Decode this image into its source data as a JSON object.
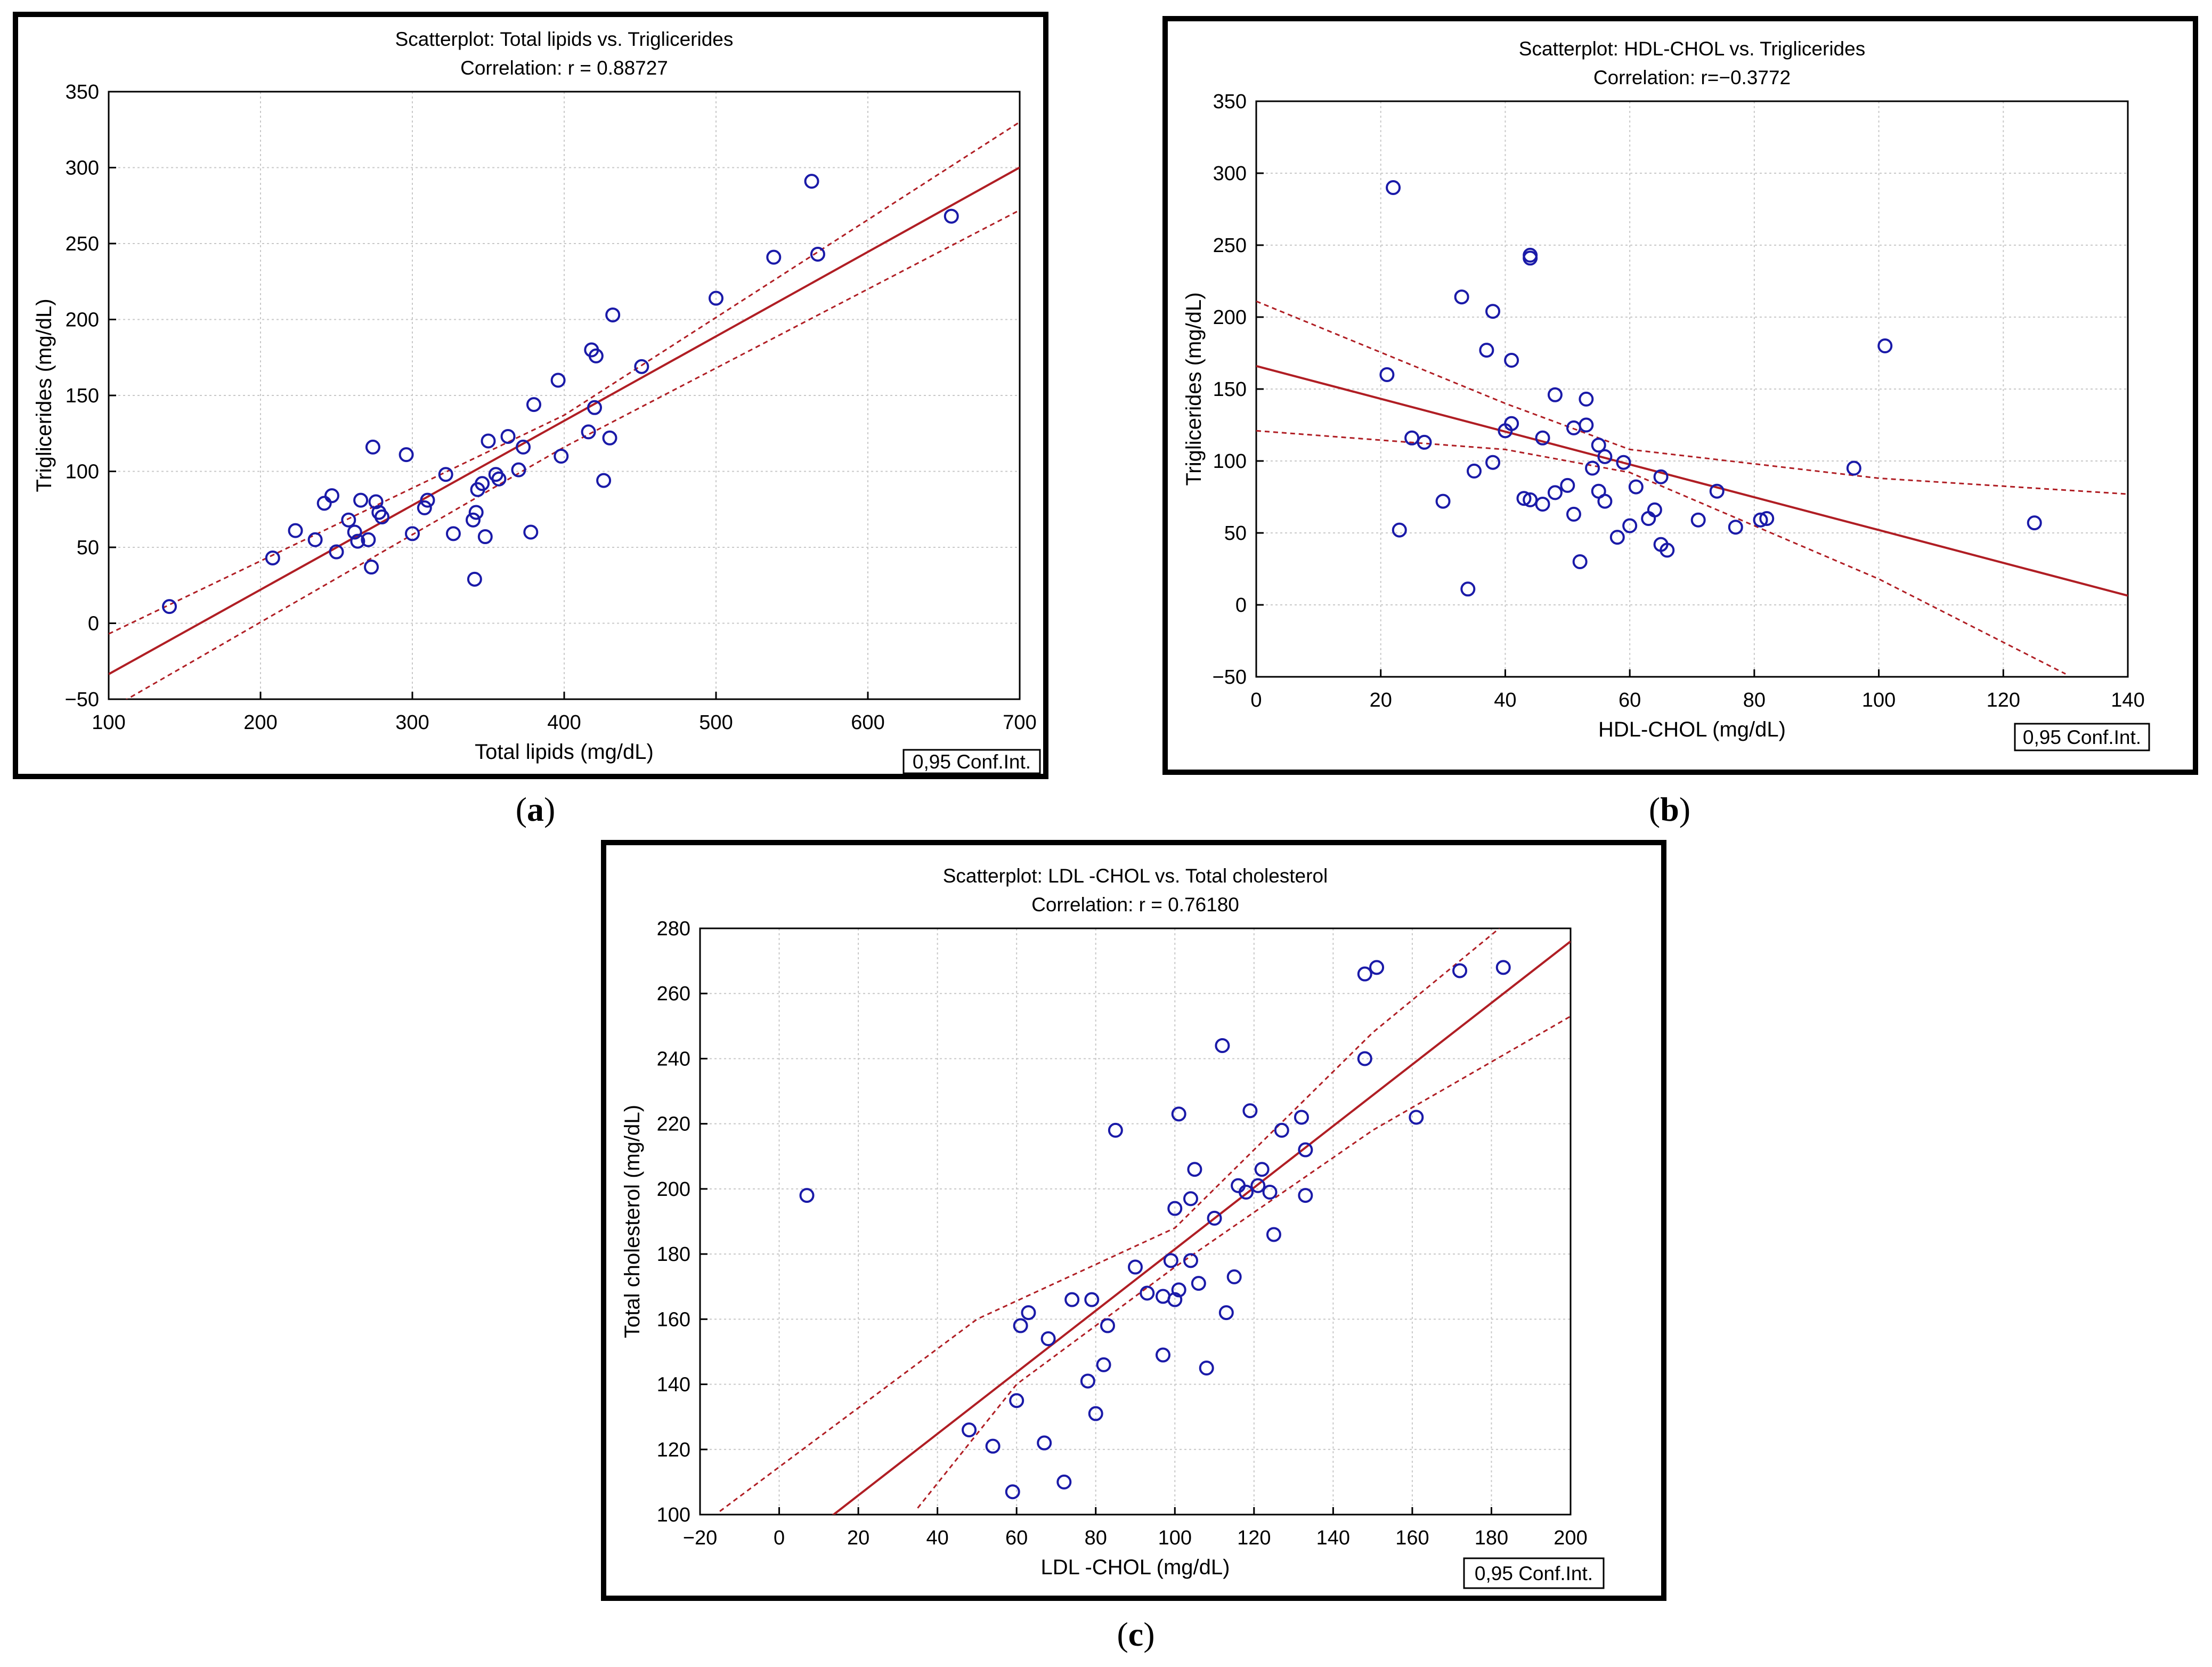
{
  "colors": {
    "frame": "#000000",
    "points": "#1a1aa8",
    "fit_line": "#b01e24",
    "conf_band": "#b01e24",
    "grid": "#c8c8c8"
  },
  "chart_data": [
    {
      "id": "a",
      "type": "scatter",
      "caption_letter": "a",
      "title": "Scatterplot: Total lipids      vs. Triglicerides",
      "subtitle": "Correlation: r = 0.88727",
      "xlabel": "Total lipids (mg/dL)",
      "ylabel": "Triglicerides (mg/dL)",
      "xlim": [
        100,
        700
      ],
      "ylim": [
        -50,
        350
      ],
      "xticks": [
        100,
        200,
        300,
        400,
        500,
        600,
        700
      ],
      "yticks": [
        -50,
        0,
        50,
        100,
        150,
        200,
        250,
        300,
        350
      ],
      "grid": true,
      "legend": "0,95 Conf.Int.",
      "fit": {
        "slope": 0.556,
        "intercept": -89.1
      },
      "conf_band": {
        "upper": [
          [
            100,
            -7
          ],
          [
            400,
            137
          ],
          [
            700,
            330
          ]
        ],
        "lower": [
          [
            100,
            -57
          ],
          [
            400,
            116
          ],
          [
            700,
            272
          ]
        ]
      },
      "points": [
        [
          140,
          11
        ],
        [
          208,
          43
        ],
        [
          223,
          61
        ],
        [
          236,
          55
        ],
        [
          242,
          79
        ],
        [
          247,
          84
        ],
        [
          250,
          47
        ],
        [
          258,
          68
        ],
        [
          262,
          60
        ],
        [
          264,
          54
        ],
        [
          266,
          81
        ],
        [
          271,
          55
        ],
        [
          273,
          37
        ],
        [
          274,
          116
        ],
        [
          276,
          80
        ],
        [
          278,
          73
        ],
        [
          280,
          70
        ],
        [
          296,
          111
        ],
        [
          300,
          59
        ],
        [
          308,
          76
        ],
        [
          310,
          81
        ],
        [
          322,
          98
        ],
        [
          327,
          59
        ],
        [
          340,
          68
        ],
        [
          342,
          73
        ],
        [
          341,
          29
        ],
        [
          343,
          88
        ],
        [
          346,
          92
        ],
        [
          348,
          57
        ],
        [
          350,
          120
        ],
        [
          355,
          98
        ],
        [
          357,
          95
        ],
        [
          363,
          123
        ],
        [
          370,
          101
        ],
        [
          373,
          116
        ],
        [
          378,
          60
        ],
        [
          380,
          144
        ],
        [
          396,
          160
        ],
        [
          398,
          110
        ],
        [
          416,
          126
        ],
        [
          418,
          180
        ],
        [
          420,
          142
        ],
        [
          421,
          176
        ],
        [
          426,
          94
        ],
        [
          430,
          122
        ],
        [
          432,
          203
        ],
        [
          451,
          169
        ],
        [
          500,
          214
        ],
        [
          538,
          241
        ],
        [
          563,
          291
        ],
        [
          567,
          243
        ],
        [
          655,
          268
        ]
      ]
    },
    {
      "id": "b",
      "type": "scatter",
      "caption_letter": "b",
      "title": "Scatterplot: HDL-CHOL  vs. Triglicerides",
      "subtitle": "Correlation: r=−0.3772",
      "xlabel": "HDL-CHOL  (mg/dL)",
      "ylabel": "Triglicerides (mg/dL)",
      "xlim": [
        0,
        140
      ],
      "ylim": [
        -50,
        350
      ],
      "xticks": [
        0,
        20,
        40,
        60,
        80,
        100,
        120,
        140
      ],
      "yticks": [
        -50,
        0,
        50,
        100,
        150,
        200,
        250,
        300,
        350
      ],
      "grid": true,
      "legend": "0,95 Conf.Int.",
      "fit": {
        "slope": -1.14,
        "intercept": 166
      },
      "conf_band": {
        "upper": [
          [
            0,
            211
          ],
          [
            40,
            140
          ],
          [
            60,
            108
          ],
          [
            100,
            88
          ],
          [
            140,
            77
          ]
        ],
        "lower": [
          [
            0,
            121
          ],
          [
            40,
            108
          ],
          [
            60,
            92
          ],
          [
            100,
            18
          ],
          [
            130,
            -48
          ]
        ]
      },
      "points": [
        [
          21,
          160
        ],
        [
          22,
          290
        ],
        [
          23,
          52
        ],
        [
          25,
          116
        ],
        [
          27,
          113
        ],
        [
          30,
          72
        ],
        [
          33,
          214
        ],
        [
          34,
          11
        ],
        [
          35,
          93
        ],
        [
          37,
          177
        ],
        [
          38,
          204
        ],
        [
          38,
          99
        ],
        [
          40,
          121
        ],
        [
          41,
          170
        ],
        [
          41,
          126
        ],
        [
          43,
          74
        ],
        [
          44,
          73
        ],
        [
          44,
          243
        ],
        [
          44,
          241
        ],
        [
          46,
          70
        ],
        [
          46,
          116
        ],
        [
          48,
          146
        ],
        [
          48,
          78
        ],
        [
          50,
          83
        ],
        [
          51,
          63
        ],
        [
          51,
          123
        ],
        [
          52,
          30
        ],
        [
          53,
          143
        ],
        [
          53,
          125
        ],
        [
          54,
          95
        ],
        [
          55,
          79
        ],
        [
          55,
          111
        ],
        [
          56,
          103
        ],
        [
          56,
          72
        ],
        [
          58,
          47
        ],
        [
          59,
          99
        ],
        [
          60,
          55
        ],
        [
          61,
          82
        ],
        [
          63,
          60
        ],
        [
          64,
          66
        ],
        [
          65,
          89
        ],
        [
          65,
          42
        ],
        [
          66,
          38
        ],
        [
          71,
          59
        ],
        [
          74,
          79
        ],
        [
          77,
          54
        ],
        [
          81,
          59
        ],
        [
          82,
          60
        ],
        [
          96,
          95
        ],
        [
          101,
          180
        ],
        [
          125,
          57
        ]
      ]
    },
    {
      "id": "c",
      "type": "scatter",
      "caption_letter": "c",
      "title": "Scatterplot: LDL -CHOL vs. Total cholesterol",
      "subtitle": "Correlation: r = 0.76180",
      "xlabel": "LDL -CHOL  (mg/dL)",
      "ylabel": "Total cholesterol (mg/dL)",
      "xlim": [
        -20,
        200
      ],
      "ylim": [
        100,
        280
      ],
      "xticks": [
        -20,
        0,
        20,
        40,
        60,
        80,
        100,
        120,
        140,
        160,
        180,
        200
      ],
      "xtick_labels": [
        "−20",
        "0",
        "20",
        "40",
        "60",
        "80",
        "100",
        "120",
        "140",
        "160",
        "180",
        "200"
      ],
      "yticks": [
        100,
        120,
        140,
        160,
        180,
        200,
        220,
        240,
        260,
        280
      ],
      "grid": true,
      "legend": "0,95 Conf.Int.",
      "fit": {
        "slope": 0.945,
        "intercept": 87
      },
      "conf_band": {
        "upper": [
          [
            -15,
            101
          ],
          [
            50,
            160
          ],
          [
            100,
            188
          ],
          [
            150,
            248
          ],
          [
            182,
            280
          ]
        ],
        "lower": [
          [
            35,
            102
          ],
          [
            60,
            140
          ],
          [
            100,
            176
          ],
          [
            150,
            218
          ],
          [
            200,
            253
          ]
        ]
      },
      "points": [
        [
          7,
          198
        ],
        [
          48,
          126
        ],
        [
          54,
          121
        ],
        [
          59,
          107
        ],
        [
          60,
          135
        ],
        [
          61,
          158
        ],
        [
          63,
          162
        ],
        [
          67,
          122
        ],
        [
          68,
          154
        ],
        [
          72,
          110
        ],
        [
          74,
          166
        ],
        [
          78,
          141
        ],
        [
          79,
          166
        ],
        [
          80,
          131
        ],
        [
          82,
          146
        ],
        [
          83,
          158
        ],
        [
          85,
          218
        ],
        [
          90,
          176
        ],
        [
          93,
          168
        ],
        [
          97,
          149
        ],
        [
          97,
          167
        ],
        [
          99,
          178
        ],
        [
          100,
          194
        ],
        [
          100,
          166
        ],
        [
          101,
          223
        ],
        [
          101,
          169
        ],
        [
          104,
          178
        ],
        [
          104,
          197
        ],
        [
          105,
          206
        ],
        [
          106,
          171
        ],
        [
          108,
          145
        ],
        [
          110,
          191
        ],
        [
          112,
          244
        ],
        [
          113,
          162
        ],
        [
          115,
          173
        ],
        [
          116,
          201
        ],
        [
          118,
          199
        ],
        [
          119,
          224
        ],
        [
          121,
          201
        ],
        [
          122,
          206
        ],
        [
          124,
          199
        ],
        [
          125,
          186
        ],
        [
          127,
          218
        ],
        [
          132,
          222
        ],
        [
          133,
          212
        ],
        [
          133,
          198
        ],
        [
          148,
          240
        ],
        [
          148,
          266
        ],
        [
          151,
          268
        ],
        [
          161,
          222
        ],
        [
          172,
          267
        ],
        [
          183,
          268
        ]
      ]
    }
  ]
}
